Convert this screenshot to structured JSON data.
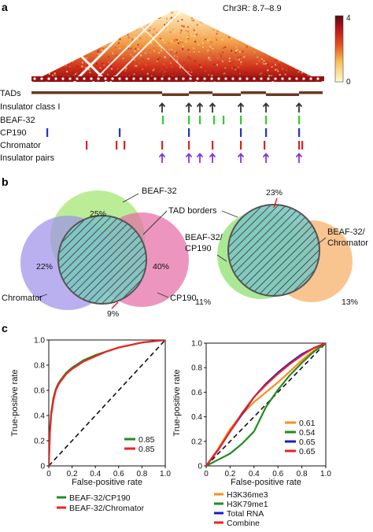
{
  "panel_a": {
    "letter": "a",
    "region": "Chr3R: 8.7–8.9",
    "colorbar": {
      "max": "4",
      "min": "0",
      "colors": [
        "#fffbd0",
        "#f6c25a",
        "#e8541c",
        "#b8141b",
        "#5a0a0a"
      ]
    },
    "tracks": [
      {
        "label": "TADs"
      },
      {
        "label": "Insulator class I",
        "color": "#333333"
      },
      {
        "label": "BEAF-32",
        "color": "#33cc33"
      },
      {
        "label": "CP190",
        "color": "#2233cc"
      },
      {
        "label": "Chromator",
        "color": "#dd2222"
      },
      {
        "label": "Insulator pairs",
        "color": "#8833dd"
      }
    ],
    "mark_x": {
      "insulator": [
        206,
        240,
        254,
        270,
        306,
        338,
        380
      ],
      "beaf": [
        207,
        240,
        254,
        272,
        284,
        306,
        338,
        380
      ],
      "cp190": [
        60,
        152,
        240,
        306,
        338,
        380
      ],
      "chromator": [
        110,
        148,
        158,
        206,
        240,
        270,
        306,
        336,
        380,
        384
      ],
      "pairs": [
        206,
        240,
        254,
        270,
        306,
        338,
        380
      ]
    }
  },
  "panel_b": {
    "letter": "b",
    "left": {
      "beaf_label": "BEAF-32",
      "tad_label": "TAD borders",
      "chromator_label": "Chromator",
      "cp190_label": "CP190",
      "pct_top": "25%",
      "pct_left": "22%",
      "pct_right": "40%",
      "pct_bottom": "9%",
      "colors": {
        "beaf": "#9ee56b",
        "chromator": "#9c8ee8",
        "cp190": "#e46aa4",
        "tad": "#7ec6c2"
      }
    },
    "right": {
      "left_label_1": "BEAF-32/",
      "left_label_2": "CP190",
      "right_label_1": "BEAF-32/",
      "right_label_2": "Chromator",
      "pct_top": "23%",
      "pct_left": "11%",
      "pct_right": "13%",
      "colors": {
        "green": "#8fe070",
        "orange": "#f6b06a"
      }
    }
  },
  "panel_c": {
    "letter": "c",
    "chart_data": [
      {
        "type": "line",
        "xlabel": "False-positive rate",
        "ylabel": "True-positive rate",
        "xlim": [
          0,
          1
        ],
        "ylim": [
          0,
          1
        ],
        "xticks": [
          "0",
          "0.2",
          "0.4",
          "0.6",
          "0.8",
          "1.0"
        ],
        "yticks": [
          "0",
          "0.2",
          "0.4",
          "0.6",
          "0.8",
          "1.0"
        ],
        "series": [
          {
            "name": "BEAF-32/CP190",
            "color": "#228b22",
            "auc": "0.85",
            "x": [
              0,
              0.01,
              0.02,
              0.04,
              0.06,
              0.08,
              0.1,
              0.15,
              0.2,
              0.3,
              0.4,
              0.5,
              0.6,
              0.7,
              0.8,
              0.9,
              1.0
            ],
            "y": [
              0,
              0.3,
              0.42,
              0.54,
              0.61,
              0.65,
              0.68,
              0.74,
              0.78,
              0.84,
              0.88,
              0.91,
              0.94,
              0.96,
              0.98,
              0.99,
              1.0
            ]
          },
          {
            "name": "BEAF-32/Chromator",
            "color": "#ee2222",
            "auc": "0.85",
            "x": [
              0,
              0.01,
              0.02,
              0.04,
              0.06,
              0.08,
              0.1,
              0.15,
              0.2,
              0.3,
              0.4,
              0.5,
              0.6,
              0.7,
              0.8,
              0.9,
              1.0
            ],
            "y": [
              0,
              0.27,
              0.4,
              0.52,
              0.6,
              0.64,
              0.67,
              0.73,
              0.77,
              0.83,
              0.87,
              0.91,
              0.94,
              0.96,
              0.98,
              0.99,
              1.0
            ]
          }
        ]
      },
      {
        "type": "line",
        "xlabel": "False-positive rate",
        "ylabel": "True-positive rate",
        "xlim": [
          0,
          1
        ],
        "ylim": [
          0,
          1
        ],
        "xticks": [
          "0",
          "0.2",
          "0.4",
          "0.6",
          "0.8",
          "1.0"
        ],
        "yticks": [
          "0",
          "0.2",
          "0.4",
          "0.6",
          "0.8",
          "1.0"
        ],
        "series": [
          {
            "name": "H3K36me3",
            "color": "#ff8c1a",
            "auc": "0.61",
            "x": [
              0,
              0.1,
              0.2,
              0.3,
              0.4,
              0.5,
              0.6,
              0.7,
              0.8,
              0.9,
              1.0
            ],
            "y": [
              0,
              0.14,
              0.3,
              0.42,
              0.52,
              0.6,
              0.68,
              0.77,
              0.86,
              0.94,
              1.0
            ]
          },
          {
            "name": "H3K79me1",
            "color": "#228b22",
            "auc": "0.54",
            "x": [
              0,
              0.1,
              0.2,
              0.3,
              0.4,
              0.5,
              0.6,
              0.7,
              0.8,
              0.9,
              1.0
            ],
            "y": [
              0,
              0.05,
              0.1,
              0.18,
              0.28,
              0.48,
              0.62,
              0.74,
              0.84,
              0.93,
              1.0
            ]
          },
          {
            "name": "Total RNA",
            "color": "#1a1acc",
            "auc": "0.65",
            "x": [
              0,
              0.1,
              0.2,
              0.3,
              0.4,
              0.5,
              0.6,
              0.7,
              0.8,
              0.9,
              1.0
            ],
            "y": [
              0,
              0.13,
              0.28,
              0.42,
              0.56,
              0.67,
              0.76,
              0.84,
              0.91,
              0.96,
              1.0
            ]
          },
          {
            "name": "Combine",
            "color": "#ee2222",
            "auc": "0.65",
            "x": [
              0,
              0.1,
              0.2,
              0.3,
              0.4,
              0.5,
              0.6,
              0.7,
              0.8,
              0.9,
              1.0
            ],
            "y": [
              0,
              0.13,
              0.28,
              0.43,
              0.56,
              0.66,
              0.75,
              0.83,
              0.9,
              0.96,
              1.0
            ]
          }
        ]
      }
    ]
  }
}
